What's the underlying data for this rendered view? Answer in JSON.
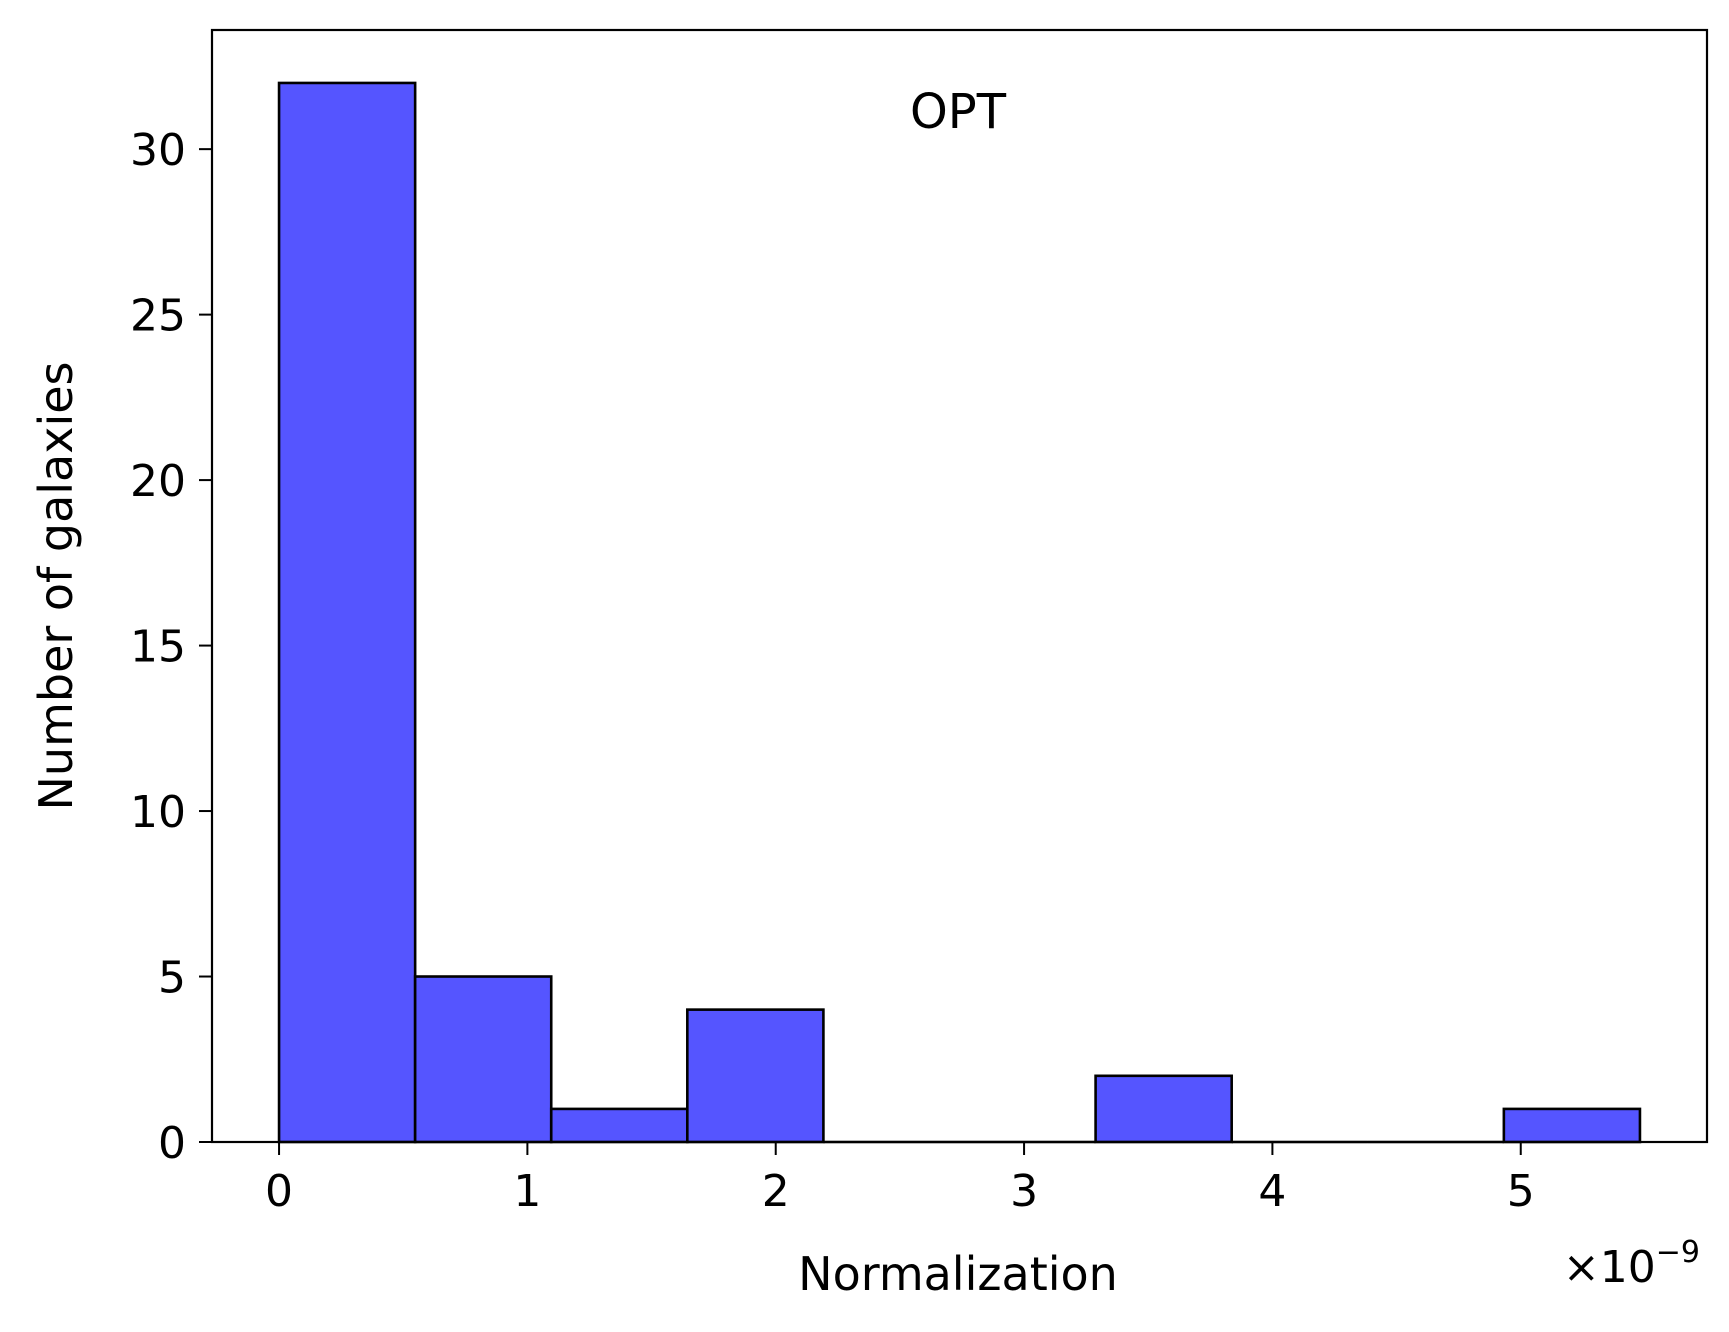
{
  "chart_data": {
    "type": "bar",
    "annotation": "OPT",
    "xlabel": "Normalization",
    "ylabel": "Number of galaxies",
    "x_offset_label": "×10",
    "x_offset_exponent": "−9",
    "xlim": [
      -0.27,
      5.75
    ],
    "ylim": [
      0,
      33.6
    ],
    "xticks": [
      0,
      1,
      2,
      3,
      4,
      5
    ],
    "yticks": [
      0,
      5,
      10,
      15,
      20,
      25,
      30
    ],
    "bin_edges": [
      0.0,
      0.548,
      1.096,
      1.644,
      2.192,
      2.74,
      3.288,
      3.836,
      4.384,
      4.932,
      5.48
    ],
    "values": [
      32,
      5,
      1,
      4,
      0,
      0,
      2,
      0,
      0,
      1
    ],
    "bar_color": "#5555ff",
    "edge_color": "#000000",
    "grid": false
  }
}
